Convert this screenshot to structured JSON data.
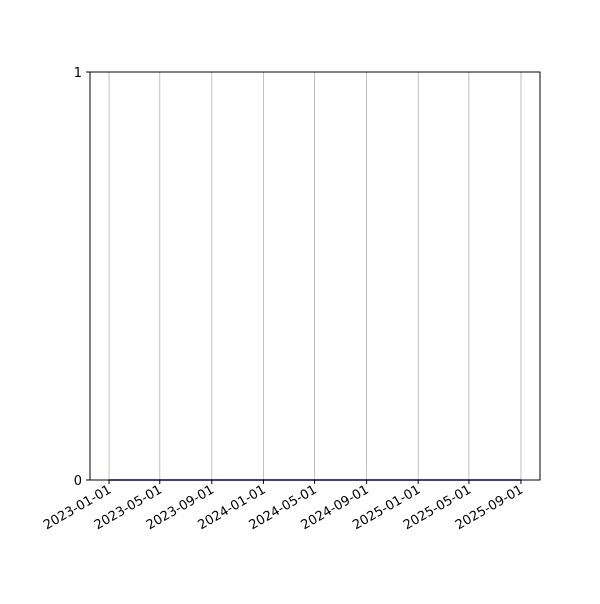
{
  "chart_data": {
    "type": "line",
    "title": "",
    "xlabel": "",
    "ylabel": "",
    "x_type": "date",
    "xlim": [
      "2022-11-17",
      "2025-10-16"
    ],
    "ylim": [
      0,
      1
    ],
    "x_ticks": [
      "2023-01-01",
      "2023-05-01",
      "2023-09-01",
      "2024-01-01",
      "2024-05-01",
      "2024-09-01",
      "2025-01-01",
      "2025-05-01",
      "2025-09-01"
    ],
    "y_ticks": [
      0,
      1
    ],
    "grid": "x-only",
    "legend": "none",
    "series": [
      {
        "color": "#0000ff",
        "x": [
          "2023-01-01",
          "2025-09-01"
        ],
        "y": [
          0,
          0
        ]
      }
    ]
  }
}
